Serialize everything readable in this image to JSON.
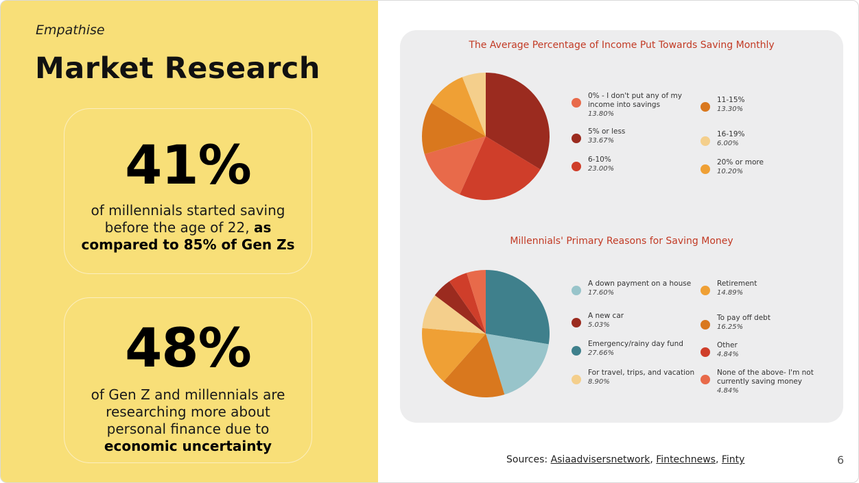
{
  "header": {
    "kicker": "Empathise",
    "title": "Market Research"
  },
  "stats": [
    {
      "value": "41%",
      "desc_plain": "of millennials started saving before the age of 22,",
      "desc_bold": "as compared to 85% of Gen Zs"
    },
    {
      "value": "48%",
      "desc_plain": "of Gen Z and millennials are researching more about personal finance due to",
      "desc_bold": "economic uncertainty"
    }
  ],
  "chart_data": [
    {
      "type": "pie",
      "title": "The Average Percentage of Income Put Towards Saving Monthly",
      "slices": [
        {
          "label": "5% or less",
          "display": "33.67%",
          "value": 33.67,
          "color": "#9b2b1f"
        },
        {
          "label": "6-10%",
          "display": "23.00%",
          "value": 23.0,
          "color": "#cf3e2a"
        },
        {
          "label": "0% - I don't put any of my income into savings",
          "display": "13.80%",
          "value": 13.8,
          "color": "#e86a4a"
        },
        {
          "label": "11-15%",
          "display": "13.30%",
          "value": 13.3,
          "color": "#d9781e"
        },
        {
          "label": "20% or more",
          "display": "10.20%",
          "value": 10.2,
          "color": "#efa035"
        },
        {
          "label": "16-19%",
          "display": "6.00%",
          "value": 6.0,
          "color": "#f4cf8c"
        }
      ],
      "legend": {
        "left": [
          {
            "label": "0% - I don't put any of my income into savings",
            "display": "13.80%",
            "color": "#e86a4a"
          },
          {
            "label": "5% or less",
            "display": "33.67%",
            "color": "#9b2b1f"
          },
          {
            "label": "6-10%",
            "display": "23.00%",
            "color": "#cf3e2a"
          }
        ],
        "right": [
          {
            "label": "11-15%",
            "display": "13.30%",
            "color": "#d9781e"
          },
          {
            "label": "16-19%",
            "display": "6.00%",
            "color": "#f4cf8c"
          },
          {
            "label": "20% or more",
            "display": "10.20%",
            "color": "#efa035"
          }
        ]
      }
    },
    {
      "type": "pie",
      "title": "Millennials' Primary Reasons for Saving Money",
      "slices": [
        {
          "label": "Emergency/rainy day fund",
          "display": "27.66%",
          "value": 27.66,
          "color": "#3f808c"
        },
        {
          "label": "A down payment on a house",
          "display": "17.60%",
          "value": 17.6,
          "color": "#98c4ca"
        },
        {
          "label": "To pay off debt",
          "display": "16.25%",
          "value": 16.25,
          "color": "#d9781e"
        },
        {
          "label": "Retirement",
          "display": "14.89%",
          "value": 14.89,
          "color": "#efa035"
        },
        {
          "label": "For travel, trips, and vacation",
          "display": "8.90%",
          "value": 8.9,
          "color": "#f4cf8c"
        },
        {
          "label": "A new car",
          "display": "5.03%",
          "value": 5.03,
          "color": "#9b2b1f"
        },
        {
          "label": "Other",
          "display": "4.84%",
          "value": 4.84,
          "color": "#cf3e2a"
        },
        {
          "label": "None of the above- I'm not currently saving money",
          "display": "4.84%",
          "value": 4.84,
          "color": "#e86a4a"
        }
      ],
      "legend": {
        "left": [
          {
            "label": "A down payment on a house",
            "display": "17.60%",
            "color": "#98c4ca"
          },
          {
            "label": "A new car",
            "display": "5.03%",
            "color": "#9b2b1f"
          },
          {
            "label": "Emergency/rainy day fund",
            "display": "27.66%",
            "color": "#3f808c"
          },
          {
            "label": "For travel, trips, and vacation",
            "display": "8.90%",
            "color": "#f4cf8c"
          }
        ],
        "right": [
          {
            "label": "Retirement",
            "display": "14.89%",
            "color": "#efa035"
          },
          {
            "label": "To pay off debt",
            "display": "16.25%",
            "color": "#d9781e"
          },
          {
            "label": "Other",
            "display": "4.84%",
            "color": "#cf3e2a"
          },
          {
            "label": "None of the above- I'm not currently saving money",
            "display": "4.84%",
            "color": "#e86a4a"
          }
        ]
      }
    }
  ],
  "footer": {
    "sources_label": "Sources:",
    "links": [
      "Asiaadvisersnetwork",
      "Fintechnews",
      "Finty"
    ],
    "separator": ",",
    "page_number": "6"
  }
}
